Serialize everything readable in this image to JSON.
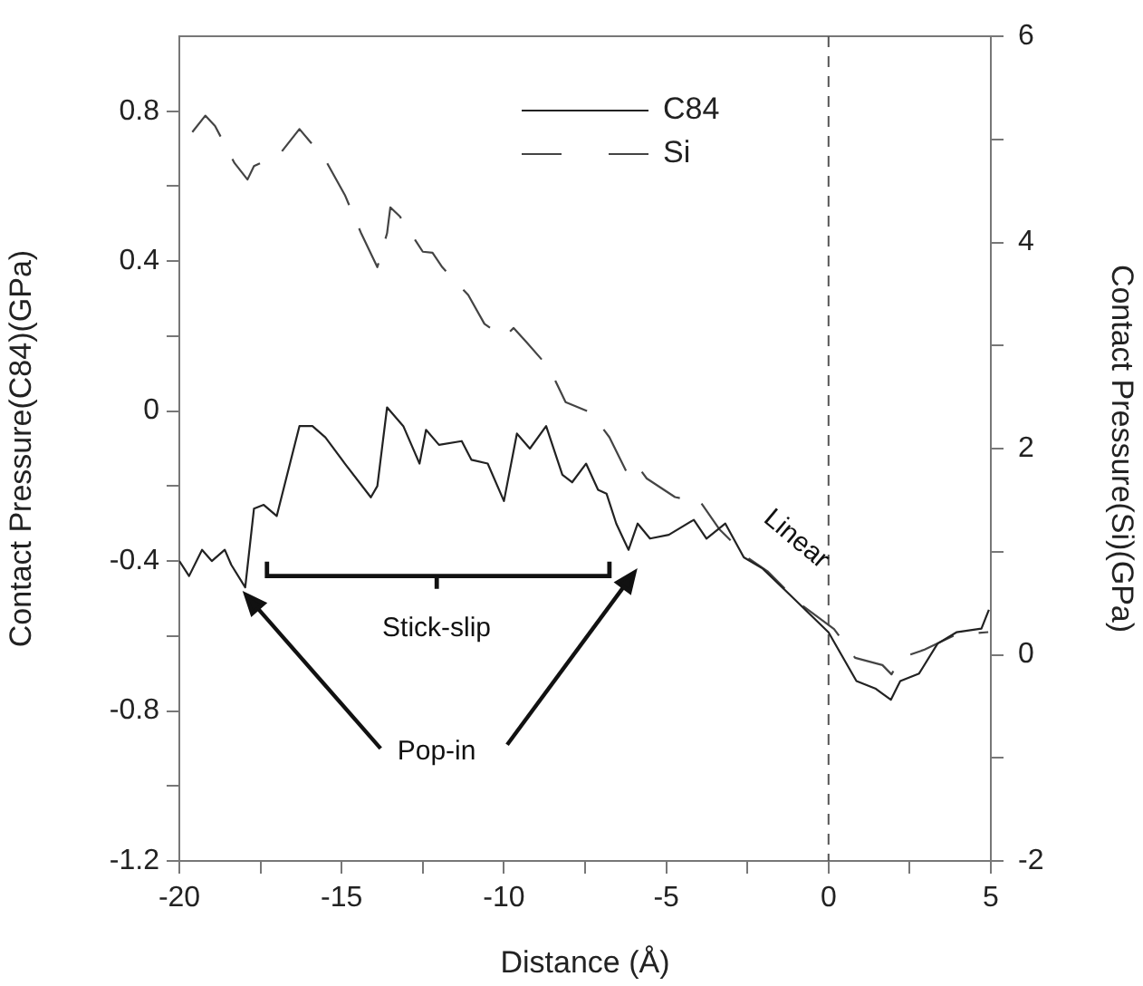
{
  "chart_data": {
    "type": "line",
    "xlabel": "Distance (Å)",
    "ylabel": "Contact Pressure(C84)(GPa)",
    "y2label": "Contact Pressure(Si)(GPa)",
    "xlim": [
      -20,
      5
    ],
    "xticks": [
      -20,
      {
        "value": -17.5,
        "label": null
      },
      -15,
      {
        "value": -12.5,
        "label": null
      },
      -10,
      {
        "value": -7.5,
        "label": null
      },
      -5,
      {
        "value": -2.5,
        "label": null
      },
      0,
      {
        "value": 2.5,
        "label": null
      },
      5
    ],
    "ylim": [
      -1.2,
      1.0
    ],
    "yticks": [
      -1.2,
      {
        "value": -1.0,
        "label": null
      },
      -0.8,
      {
        "value": -0.6,
        "label": null
      },
      -0.4,
      {
        "value": -0.2,
        "label": null
      },
      0,
      {
        "value": 0.2,
        "label": null
      },
      0.4,
      {
        "value": 0.6,
        "label": null
      },
      0.8
    ],
    "y2lim": [
      -2,
      6
    ],
    "y2ticks": [
      -2,
      {
        "value": -1,
        "label": null
      },
      0,
      {
        "value": 1,
        "label": null
      },
      2,
      {
        "value": 3,
        "label": null
      },
      4,
      {
        "value": 5,
        "label": null
      },
      6
    ],
    "legend": "top",
    "marker": "none",
    "series": [
      {
        "name": "C84",
        "color": "#222222",
        "line_style": "solid",
        "x": [
          -20,
          -19.7,
          -19.3,
          -19.0,
          -18.6,
          -18.4,
          -17.97,
          -17.7,
          -17.4,
          -17.0,
          -16.3,
          -15.9,
          -15.5,
          -14.9,
          -14.1,
          -13.9,
          -13.6,
          -13.1,
          -12.6,
          -12.4,
          -12.0,
          -11.3,
          -11.0,
          -10.5,
          -10.0,
          -9.6,
          -9.2,
          -8.7,
          -8.2,
          -7.9,
          -7.47,
          -7.1,
          -6.84,
          -6.54,
          -6.27,
          -6.16,
          -5.88,
          -5.5,
          -4.92,
          -4.15,
          -3.76,
          -3.18,
          -2.61,
          -2.03,
          -1.07,
          0.0,
          0.86,
          1.44,
          1.92,
          2.21,
          2.79,
          3.36,
          3.94,
          4.71,
          4.94
        ],
        "values": [
          -0.4,
          -0.44,
          -0.37,
          -0.4,
          -0.37,
          -0.41,
          -0.47,
          -0.26,
          -0.25,
          -0.28,
          -0.04,
          -0.04,
          -0.07,
          -0.14,
          -0.23,
          -0.2,
          0.01,
          -0.04,
          -0.14,
          -0.05,
          -0.09,
          -0.08,
          -0.13,
          -0.14,
          -0.24,
          -0.06,
          -0.1,
          -0.04,
          -0.17,
          -0.19,
          -0.14,
          -0.21,
          -0.22,
          -0.3,
          -0.35,
          -0.37,
          -0.3,
          -0.34,
          -0.33,
          -0.29,
          -0.34,
          -0.3,
          -0.39,
          -0.42,
          -0.5,
          -0.59,
          -0.72,
          -0.74,
          -0.77,
          -0.72,
          -0.7,
          -0.62,
          -0.59,
          -0.58,
          -0.53
        ]
      },
      {
        "name": "Si",
        "color": "#444444",
        "line_style": "dashed",
        "axis": "y2",
        "x": [
          -19.6,
          -19.2,
          -18.9,
          -18.3,
          -17.9,
          -17.7,
          -16.9,
          -16.3,
          -15.5,
          -14.9,
          -14.4,
          -13.9,
          -13.6,
          -13.5,
          -13.2,
          -12.5,
          -12.2,
          -11.9,
          -11.1,
          -10.6,
          -10.0,
          -9.7,
          -9.3,
          -8.6,
          -8.1,
          -7.32,
          -6.75,
          -6.17,
          -5.88,
          -5.6,
          -4.73,
          -4.44,
          -4.05,
          -3.37,
          -2.44,
          -1.88,
          -0.86,
          0.17,
          0.82,
          1.66,
          1.94,
          2.22,
          2.96,
          3.89,
          4.92
        ],
        "values": [
          5.07,
          5.23,
          5.13,
          4.77,
          4.61,
          4.74,
          4.86,
          5.1,
          4.8,
          4.46,
          4.09,
          3.76,
          4.09,
          4.34,
          4.25,
          3.91,
          3.9,
          3.76,
          3.49,
          3.21,
          3.08,
          3.17,
          3.03,
          2.78,
          2.45,
          2.35,
          2.11,
          1.74,
          1.83,
          1.71,
          1.53,
          1.51,
          1.53,
          1.22,
          0.93,
          0.81,
          0.49,
          0.25,
          -0.03,
          -0.1,
          -0.19,
          -0.03,
          0.05,
          0.19,
          0.22
        ]
      }
    ],
    "ref_lines": [
      {
        "axis": "x",
        "value": 0,
        "line_style": "dashed",
        "color": "#555555"
      }
    ],
    "annotations": [
      "Linear",
      "Stick-slip",
      "Pop-in"
    ]
  }
}
